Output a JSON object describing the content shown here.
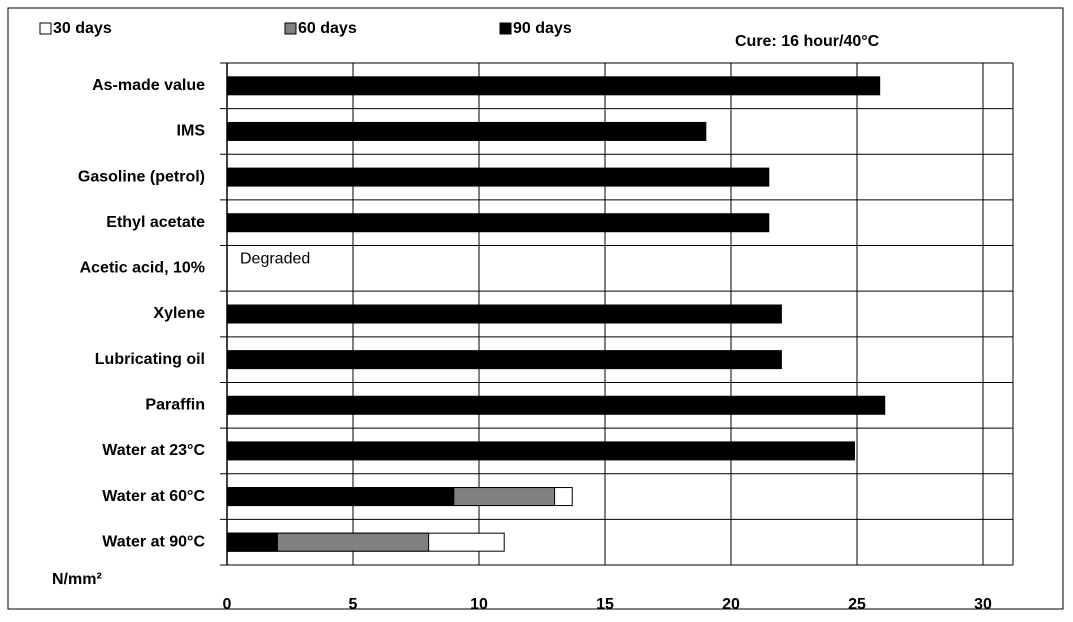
{
  "chart_data": {
    "type": "bar",
    "orientation": "horizontal",
    "overlap": true,
    "annotation_top_right": "Cure: 16 hour/40°C",
    "x_label": "N/mm²",
    "categories": [
      "As-made value",
      "IMS",
      "Gasoline (petrol)",
      "Ethyl acetate",
      "Acetic acid, 10%",
      "Xylene",
      "Lubricating oil",
      "Paraffin",
      "Water at 23°C",
      "Water at 60°C",
      "Water at 90°C"
    ],
    "series": [
      {
        "name": "30 days",
        "color": "#ffffff",
        "values": [
          null,
          null,
          null,
          null,
          null,
          null,
          null,
          null,
          null,
          13.7,
          11
        ]
      },
      {
        "name": "60 days",
        "color": "#808080",
        "values": [
          null,
          null,
          null,
          null,
          null,
          null,
          null,
          null,
          null,
          13,
          8
        ]
      },
      {
        "name": "90 days",
        "color": "#000000",
        "values": [
          25.9,
          19,
          21.5,
          21.5,
          null,
          22,
          22,
          26.1,
          24.9,
          9,
          2
        ]
      }
    ],
    "annotations": [
      {
        "category_index": 4,
        "text": "Degraded"
      }
    ],
    "xlim": [
      0,
      30
    ],
    "xticks": [
      0,
      5,
      10,
      15,
      20,
      25,
      30
    ],
    "grid": true
  }
}
